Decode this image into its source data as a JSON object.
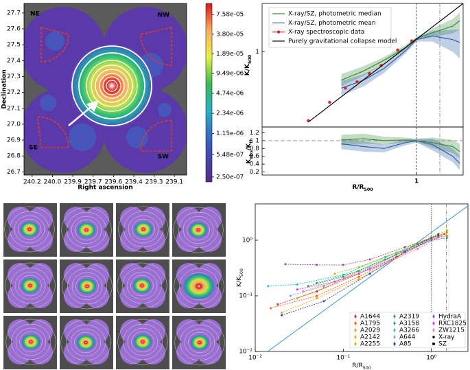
{
  "chart_data": [
    {
      "type": "image",
      "xlabel": "Right ascension",
      "ylabel": "Declination",
      "xlim": [
        240.25,
        239.05
      ],
      "xticks": [
        {
          "value": 240.19,
          "label": "240.2"
        },
        {
          "value": 240.04,
          "label": "240.0"
        },
        {
          "value": 239.89,
          "label": "239.9"
        },
        {
          "value": 239.74,
          "label": "239.7"
        },
        {
          "value": 239.59,
          "label": "239.6"
        },
        {
          "value": 239.44,
          "label": "239.4"
        },
        {
          "value": 239.29,
          "label": "239.3"
        },
        {
          "value": 239.14,
          "label": "239.1"
        }
      ],
      "ylim": [
        26.68,
        27.76
      ],
      "yticks": [
        26.7,
        26.8,
        26.9,
        {
          "value": 27,
          "label": "27.0"
        },
        27.1,
        27.2,
        27.3,
        27.4,
        27.5,
        27.6,
        27.7
      ],
      "colorbar": {
        "scale": "log",
        "lim": [
          2.1e-07,
          0.000112
        ],
        "ticks": [
          {
            "value": 7.58e-05,
            "label": "7.58e-05"
          },
          {
            "value": 3.8e-05,
            "label": "3.80e-05"
          },
          {
            "value": 1.89e-05,
            "label": "1.89e-05"
          },
          {
            "value": 9.49e-06,
            "label": "9.49e-06"
          },
          {
            "value": 4.74e-06,
            "label": "4.74e-06"
          },
          {
            "value": 2.34e-06,
            "label": "2.34e-06"
          },
          {
            "value": 1.15e-06,
            "label": "1.15e-06"
          },
          {
            "value": 5.48e-07,
            "label": "5.48e-07"
          },
          {
            "value": 2.5e-07,
            "label": "2.50e-07"
          }
        ]
      },
      "annotations": [
        "NE",
        "NW",
        "SE",
        "SW"
      ]
    },
    {
      "type": "line",
      "xlabel": [
        "R/R",
        "500"
      ],
      "ylabel": [
        "K/K",
        "500"
      ],
      "xscale": "log",
      "yscale": "log",
      "xlim": [
        0.068,
        2.25
      ],
      "xticks": [
        1
      ],
      "ylim": [
        0.15,
        3.4
      ],
      "yticks": [
        1
      ],
      "vlines": [
        1,
        1.5
      ],
      "legend": "upper left",
      "series": [
        {
          "name": "X-ray/SZ, photometric median",
          "color": "#3a8a3a",
          "x": [
            0.27,
            0.4,
            0.57,
            0.82,
            1,
            1.32,
            1.88,
            2.12
          ],
          "values": [
            0.49,
            0.62,
            0.81,
            1.11,
            1.41,
            1.62,
            1.92,
            2.2
          ],
          "lower": [
            0.42,
            0.55,
            0.74,
            1.05,
            1.36,
            1.45,
            1.6,
            1.75
          ],
          "upper": [
            0.57,
            0.7,
            0.88,
            1.18,
            1.46,
            1.8,
            2.3,
            2.7
          ]
        },
        {
          "name": "X-ray/SZ, photometric mean",
          "color": "#2f5fa8",
          "x": [
            0.27,
            0.4,
            0.57,
            0.82,
            1,
            1.32,
            1.88,
            2.12
          ],
          "values": [
            0.4,
            0.49,
            0.66,
            1.02,
            1.36,
            1.5,
            1.36,
            1.27
          ],
          "lower": [
            0.33,
            0.42,
            0.59,
            0.95,
            1.3,
            1.3,
            1.0,
            0.85
          ],
          "upper": [
            0.48,
            0.57,
            0.74,
            1.1,
            1.42,
            1.7,
            1.75,
            1.75
          ]
        },
        {
          "name": "X-ray spectroscopic data",
          "color": "#d62728",
          "marker": "circle",
          "x": [
            0.152,
            0.22,
            0.29,
            0.355,
            0.44,
            0.54,
            0.72,
            0.92
          ],
          "values": [
            0.176,
            0.28,
            0.4,
            0.47,
            0.58,
            0.71,
            1.05,
            1.32
          ]
        },
        {
          "name": "Purely gravitational collapse model",
          "color": "#000000",
          "x": [
            0.152,
            2.25
          ],
          "values": [
            0.17,
            3.4
          ]
        }
      ],
      "ratio_panel": {
        "ylabel": [
          "K",
          "obs",
          "/K",
          "th"
        ],
        "ylim": [
          0.12,
          1.35
        ],
        "yticks": [
          0.2,
          0.4,
          0.6,
          0.8,
          1,
          1.2
        ],
        "hline": 1,
        "series": [
          {
            "color": "#3a8a3a",
            "x": [
              0.27,
              0.4,
              0.57,
              0.82,
              1,
              1.32,
              1.88,
              2.12
            ],
            "values": [
              1.02,
              1.05,
              1.0,
              1.02,
              1.0,
              0.95,
              0.85,
              0.72
            ],
            "lower": [
              0.88,
              0.92,
              0.9,
              0.95,
              0.96,
              0.82,
              0.68,
              0.55
            ],
            "upper": [
              1.15,
              1.18,
              1.1,
              1.08,
              1.05,
              1.08,
              1.02,
              0.92
            ]
          },
          {
            "color": "#2f5fa8",
            "x": [
              0.27,
              0.4,
              0.57,
              0.82,
              1,
              1.32,
              1.88,
              2.12
            ],
            "values": [
              0.92,
              0.85,
              0.8,
              0.95,
              1.0,
              0.9,
              0.6,
              0.42
            ],
            "lower": [
              0.78,
              0.72,
              0.7,
              0.88,
              0.95,
              0.75,
              0.45,
              0.25
            ],
            "upper": [
              1.05,
              0.98,
              0.9,
              1.02,
              1.05,
              1.05,
              0.8,
              0.62
            ]
          }
        ]
      }
    },
    {
      "type": "line",
      "xlabel": [
        "R/R",
        "500"
      ],
      "ylabel": [
        "K/K",
        "500"
      ],
      "xscale": "log",
      "yscale": "log",
      "xlim": [
        0.01,
        2.6
      ],
      "xticks": [
        {
          "value": 0.01,
          "label": "10⁻²"
        },
        {
          "value": 0.1,
          "label": "10⁻¹"
        },
        {
          "value": 1,
          "label": "10⁰"
        }
      ],
      "ylim": [
        0.01,
        4.5
      ],
      "yticks": [
        {
          "value": 0.01,
          "label": "10⁻²"
        },
        {
          "value": 0.1,
          "label": "10⁻¹"
        },
        {
          "value": 1,
          "label": "10⁰"
        }
      ],
      "vlines": [
        1,
        1.48
      ],
      "legend": "lower right",
      "reference_line": {
        "color": "#3b8fd0",
        "x": [
          0.0138,
          2.6
        ],
        "values": [
          0.01,
          4.14
        ]
      },
      "series": [
        {
          "name": "A1644",
          "color": "#e41a1c",
          "x": [
            0.018,
            0.05,
            0.15,
            0.4,
            1.0,
            1.4
          ],
          "values": [
            0.07,
            0.12,
            0.25,
            0.55,
            1.1,
            1.3
          ]
        },
        {
          "name": "A1795",
          "color": "#ff5a1f",
          "x": [
            0.015,
            0.05,
            0.15,
            0.4,
            1.0,
            1.5
          ],
          "values": [
            0.06,
            0.1,
            0.22,
            0.5,
            1.0,
            1.2
          ]
        },
        {
          "name": "A2029",
          "color": "#ff9900",
          "x": [
            0.02,
            0.05,
            0.15,
            0.4,
            1.0,
            1.5
          ],
          "values": [
            0.05,
            0.09,
            0.2,
            0.48,
            1.05,
            1.4
          ]
        },
        {
          "name": "A2142",
          "color": "#d4b000",
          "x": [
            0.03,
            0.06,
            0.15,
            0.4,
            1.0,
            1.5
          ],
          "values": [
            0.09,
            0.14,
            0.28,
            0.6,
            1.15,
            1.5
          ]
        },
        {
          "name": "A2255",
          "color": "#a8c800",
          "x": [
            0.08,
            0.15,
            0.4,
            1.0,
            1.5
          ],
          "values": [
            0.25,
            0.33,
            0.6,
            1.1,
            1.4
          ]
        },
        {
          "name": "A2319",
          "color": "#2ca02c",
          "x": [
            0.04,
            0.1,
            0.3,
            0.7,
            1.2
          ],
          "values": [
            0.15,
            0.22,
            0.45,
            0.85,
            1.3
          ]
        },
        {
          "name": "A3158",
          "color": "#1f9e6e",
          "x": [
            0.05,
            0.15,
            0.4,
            1.0,
            1.5
          ],
          "values": [
            0.17,
            0.28,
            0.55,
            1.0,
            1.1
          ]
        },
        {
          "name": "A3266",
          "color": "#17becf",
          "x": [
            0.014,
            0.03,
            0.1,
            0.3,
            1.0
          ],
          "values": [
            0.15,
            0.16,
            0.24,
            0.5,
            1.0
          ]
        },
        {
          "name": "A644",
          "color": "#6fa8dc",
          "x": [
            0.025,
            0.06,
            0.2,
            0.5,
            1.2
          ],
          "values": [
            0.1,
            0.15,
            0.32,
            0.65,
            1.2
          ]
        },
        {
          "name": "A85",
          "color": "#1f3c9e",
          "x": [
            0.02,
            0.06,
            0.2,
            0.5,
            1.2
          ],
          "values": [
            0.045,
            0.08,
            0.25,
            0.62,
            1.25
          ]
        },
        {
          "name": "HydraA",
          "color": "#8e44ad",
          "x": [
            0.022,
            0.05,
            0.1,
            0.2,
            0.5,
            1.0
          ],
          "values": [
            0.37,
            0.36,
            0.36,
            0.45,
            0.75,
            1.1
          ]
        },
        {
          "name": "RXC1825",
          "color": "#d633d6",
          "x": [
            0.03,
            0.08,
            0.2,
            0.5,
            1.2
          ],
          "values": [
            0.13,
            0.18,
            0.3,
            0.6,
            1.15
          ]
        },
        {
          "name": "ZW1215",
          "color": "#ff6fb0",
          "x": [
            0.035,
            0.1,
            0.3,
            0.7,
            1.3
          ],
          "values": [
            0.12,
            0.2,
            0.38,
            0.7,
            1.2
          ]
        }
      ],
      "markers": [
        {
          "name": "X-ray",
          "symbol": "circle"
        },
        {
          "name": "SZ",
          "symbol": "square"
        }
      ]
    }
  ]
}
